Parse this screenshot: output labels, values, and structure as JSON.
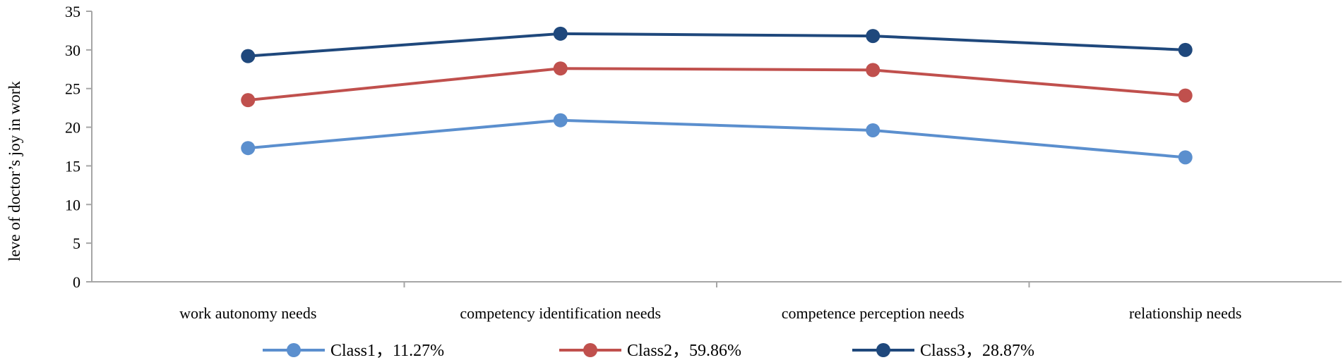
{
  "chart_data": {
    "type": "line",
    "title": "",
    "xlabel": "",
    "ylabel": "leve of doctor’s joy in work",
    "categories": [
      "work autonomy needs",
      "competency identification needs",
      "competence perception needs",
      "relationship needs"
    ],
    "ylim": [
      0,
      35
    ],
    "yticks": [
      "0",
      "5",
      "10",
      "15",
      "20",
      "25",
      "30",
      "35"
    ],
    "grid": false,
    "legend_position": "bottom",
    "series": [
      {
        "name": "Class1，11.27%",
        "color": "#5B8FCE",
        "values": [
          17.3,
          20.9,
          19.6,
          16.1
        ]
      },
      {
        "name": "Class2，59.86%",
        "color": "#C0504D",
        "values": [
          23.5,
          27.6,
          27.4,
          24.1
        ]
      },
      {
        "name": "Class3，28.87%",
        "color": "#1F487C",
        "values": [
          29.2,
          32.1,
          31.8,
          30.0
        ]
      }
    ]
  }
}
